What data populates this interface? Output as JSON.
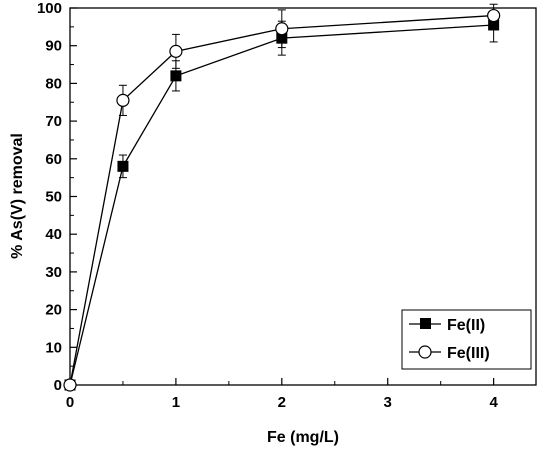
{
  "chart_data": {
    "type": "line",
    "xlabel": "Fe (mg/L)",
    "ylabel": "% As(V) removal",
    "xlim": [
      0,
      4.4
    ],
    "ylim": [
      0,
      100
    ],
    "x_ticks": [
      "0",
      "1",
      "2",
      "3",
      "4"
    ],
    "y_ticks": [
      "0",
      "10",
      "20",
      "30",
      "40",
      "50",
      "60",
      "70",
      "80",
      "90",
      "100"
    ],
    "grid": false,
    "legend_position": "bottom-right",
    "series": [
      {
        "name": "Fe(II)",
        "marker": "filled-square",
        "x": [
          0,
          0.5,
          1,
          2,
          4
        ],
        "y": [
          0,
          58,
          82,
          92,
          95.5
        ],
        "error": [
          0,
          3,
          4,
          4.5,
          4.5
        ]
      },
      {
        "name": "Fe(III)",
        "marker": "open-circle",
        "x": [
          0,
          0.5,
          1,
          2,
          4
        ],
        "y": [
          0,
          75.5,
          88.5,
          94.5,
          98
        ],
        "error": [
          0,
          4,
          4.5,
          5,
          3
        ]
      }
    ]
  }
}
